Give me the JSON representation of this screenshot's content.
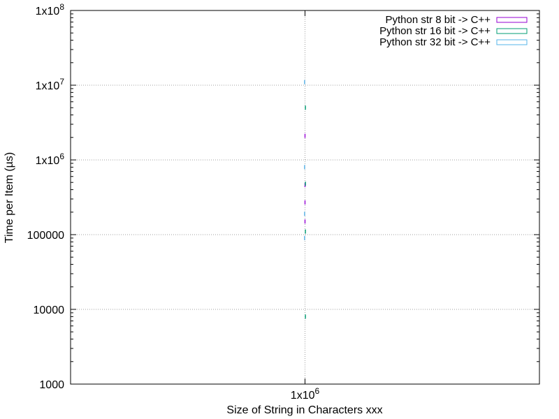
{
  "chart_data": {
    "type": "scatter",
    "title": "",
    "xlabel": "Size of String in Characters xxx",
    "ylabel": "Time per Item (µs)",
    "x_scale": "log",
    "y_scale": "log",
    "xlim": [
      398107,
      2511886
    ],
    "ylim": [
      1000,
      100000000
    ],
    "grid": true,
    "legend_position": "top-right",
    "x_ticks": [
      {
        "value": 1000000,
        "base": "1x10",
        "exp": "6"
      }
    ],
    "y_ticks": [
      {
        "value": 1000,
        "text": "1000"
      },
      {
        "value": 10000,
        "text": "10000"
      },
      {
        "value": 100000,
        "text": "100000"
      },
      {
        "value": 1000000,
        "base": "1x10",
        "exp": "6"
      },
      {
        "value": 10000000,
        "base": "1x10",
        "exp": "7"
      },
      {
        "value": 100000000,
        "base": "1x10",
        "exp": "8"
      }
    ],
    "series": [
      {
        "name": "Python str 8 bit -> C++",
        "color": "#9400d3",
        "x": [
          1000000,
          1000000,
          1000000,
          1000000
        ],
        "y": [
          2100000,
          460000,
          270000,
          150000
        ]
      },
      {
        "name": "Python str 16 bit -> C++",
        "color": "#009e73",
        "x": [
          1000000,
          1000000,
          1000000,
          1000000
        ],
        "y": [
          5000000,
          480000,
          110000,
          8000
        ]
      },
      {
        "name": "Python str 32 bit -> C++",
        "color": "#56b4e9",
        "x": [
          1000000,
          1000000,
          1000000,
          1000000
        ],
        "y": [
          11000000,
          800000,
          190000,
          90000
        ]
      }
    ]
  }
}
